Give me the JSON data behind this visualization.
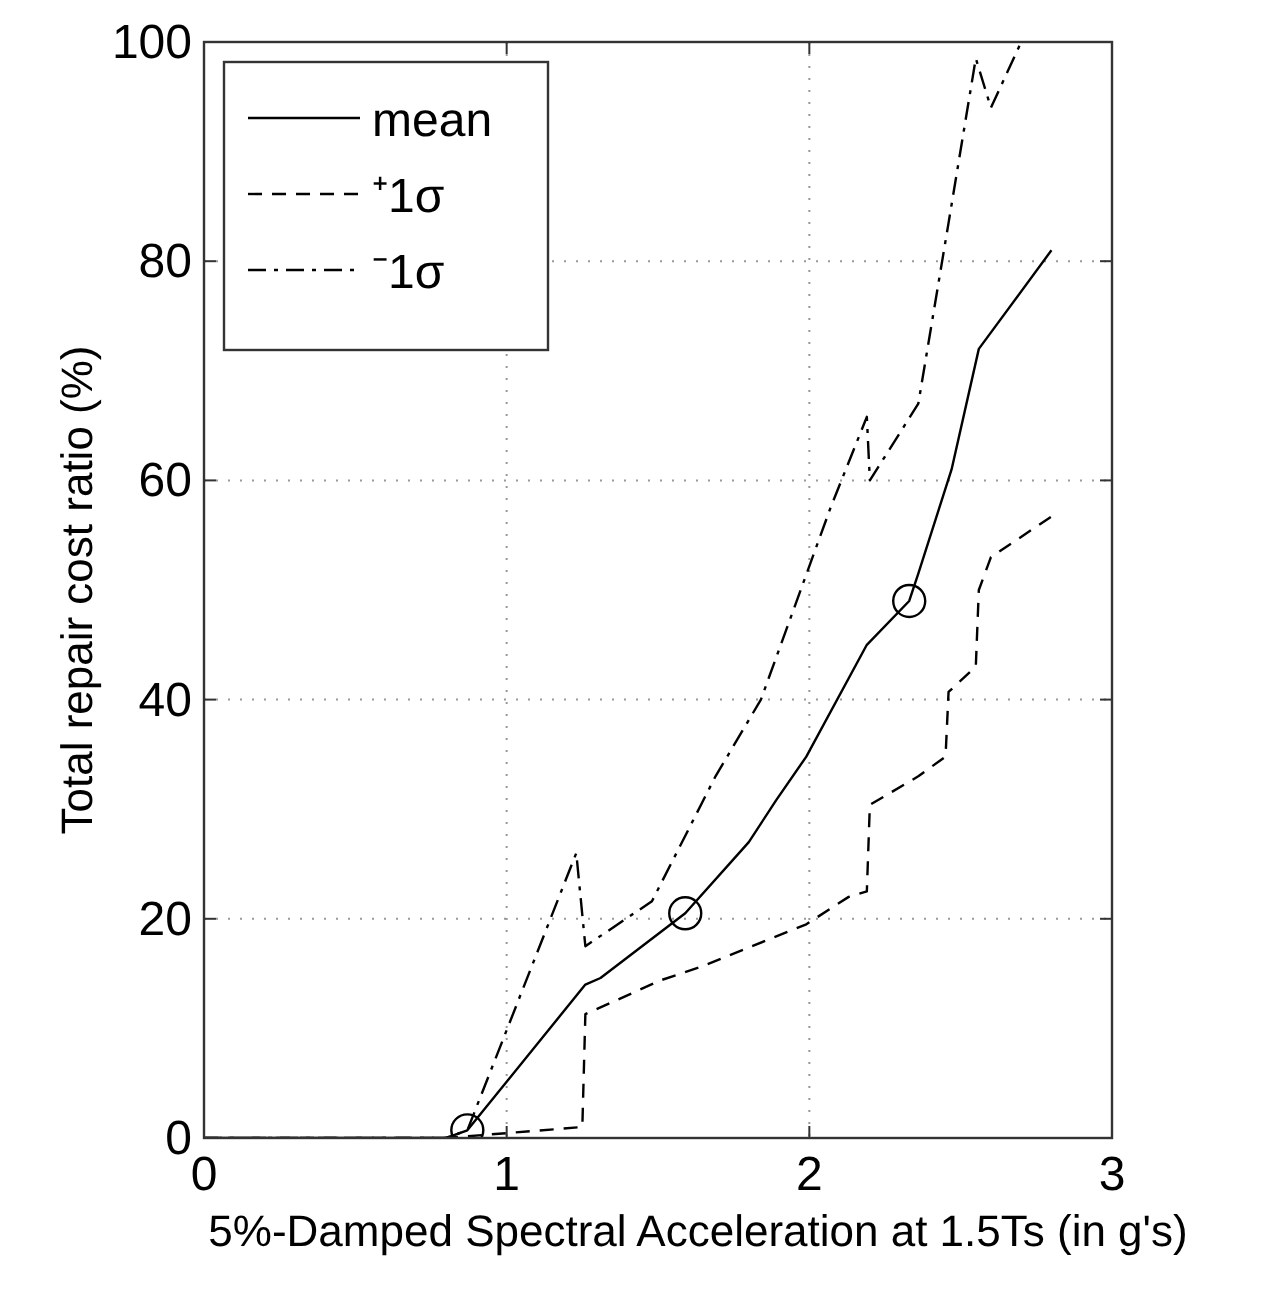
{
  "chart_data": {
    "type": "line",
    "xlabel": "5%-Damped Spectral Acceleration at 1.5Ts (in g's)",
    "ylabel": "Total repair cost ratio (%)",
    "xlim": [
      0,
      3
    ],
    "ylim": [
      0,
      100
    ],
    "xticks": [
      0,
      1,
      2,
      3
    ],
    "yticks": [
      0,
      20,
      40,
      60,
      80,
      100
    ],
    "grid": true,
    "legend": "top left",
    "series": [
      {
        "name": "mean",
        "color": "#000000",
        "line_style": "solid",
        "x": [
          0,
          0.8,
          0.87,
          1.26,
          1.31,
          1.59,
          1.8,
          1.89,
          1.99,
          2.19,
          2.33,
          2.36,
          2.47,
          2.56,
          2.8
        ],
        "values": [
          0,
          0,
          0.7,
          14,
          14.6,
          20.5,
          27,
          30.8,
          34.8,
          45,
          49,
          51.5,
          61,
          72,
          81
        ]
      },
      {
        "name": "⁺1σ",
        "color": "#000000",
        "line_style": "dashed",
        "x": [
          0,
          0.8,
          1.25,
          1.26,
          1.51,
          1.64,
          1.99,
          2.13,
          2.19,
          2.2,
          2.36,
          2.45,
          2.46,
          2.55,
          2.56,
          2.6,
          2.8
        ],
        "values": [
          0,
          0,
          1,
          11.3,
          14.4,
          15.6,
          19.5,
          22,
          22.5,
          30.4,
          33,
          34.8,
          40.7,
          43,
          50,
          53,
          56.7
        ]
      },
      {
        "name": "⁻1σ",
        "color": "#000000",
        "line_style": "dashdot",
        "x": [
          0,
          0.8,
          0.87,
          1.23,
          1.26,
          1.48,
          1.69,
          1.84,
          2.07,
          2.19,
          2.2,
          2.36,
          2.46,
          2.55,
          2.6,
          2.7
        ],
        "values": [
          0,
          0,
          0.7,
          26,
          17.5,
          21.6,
          33,
          40,
          57.5,
          65.8,
          60,
          67,
          83.5,
          98.5,
          94,
          100
        ]
      },
      {
        "type": "scatter",
        "color": "#000000",
        "marker": "circle",
        "x": [
          0.87,
          1.59,
          2.33
        ],
        "values": [
          0.7,
          20.5,
          49
        ]
      }
    ]
  }
}
